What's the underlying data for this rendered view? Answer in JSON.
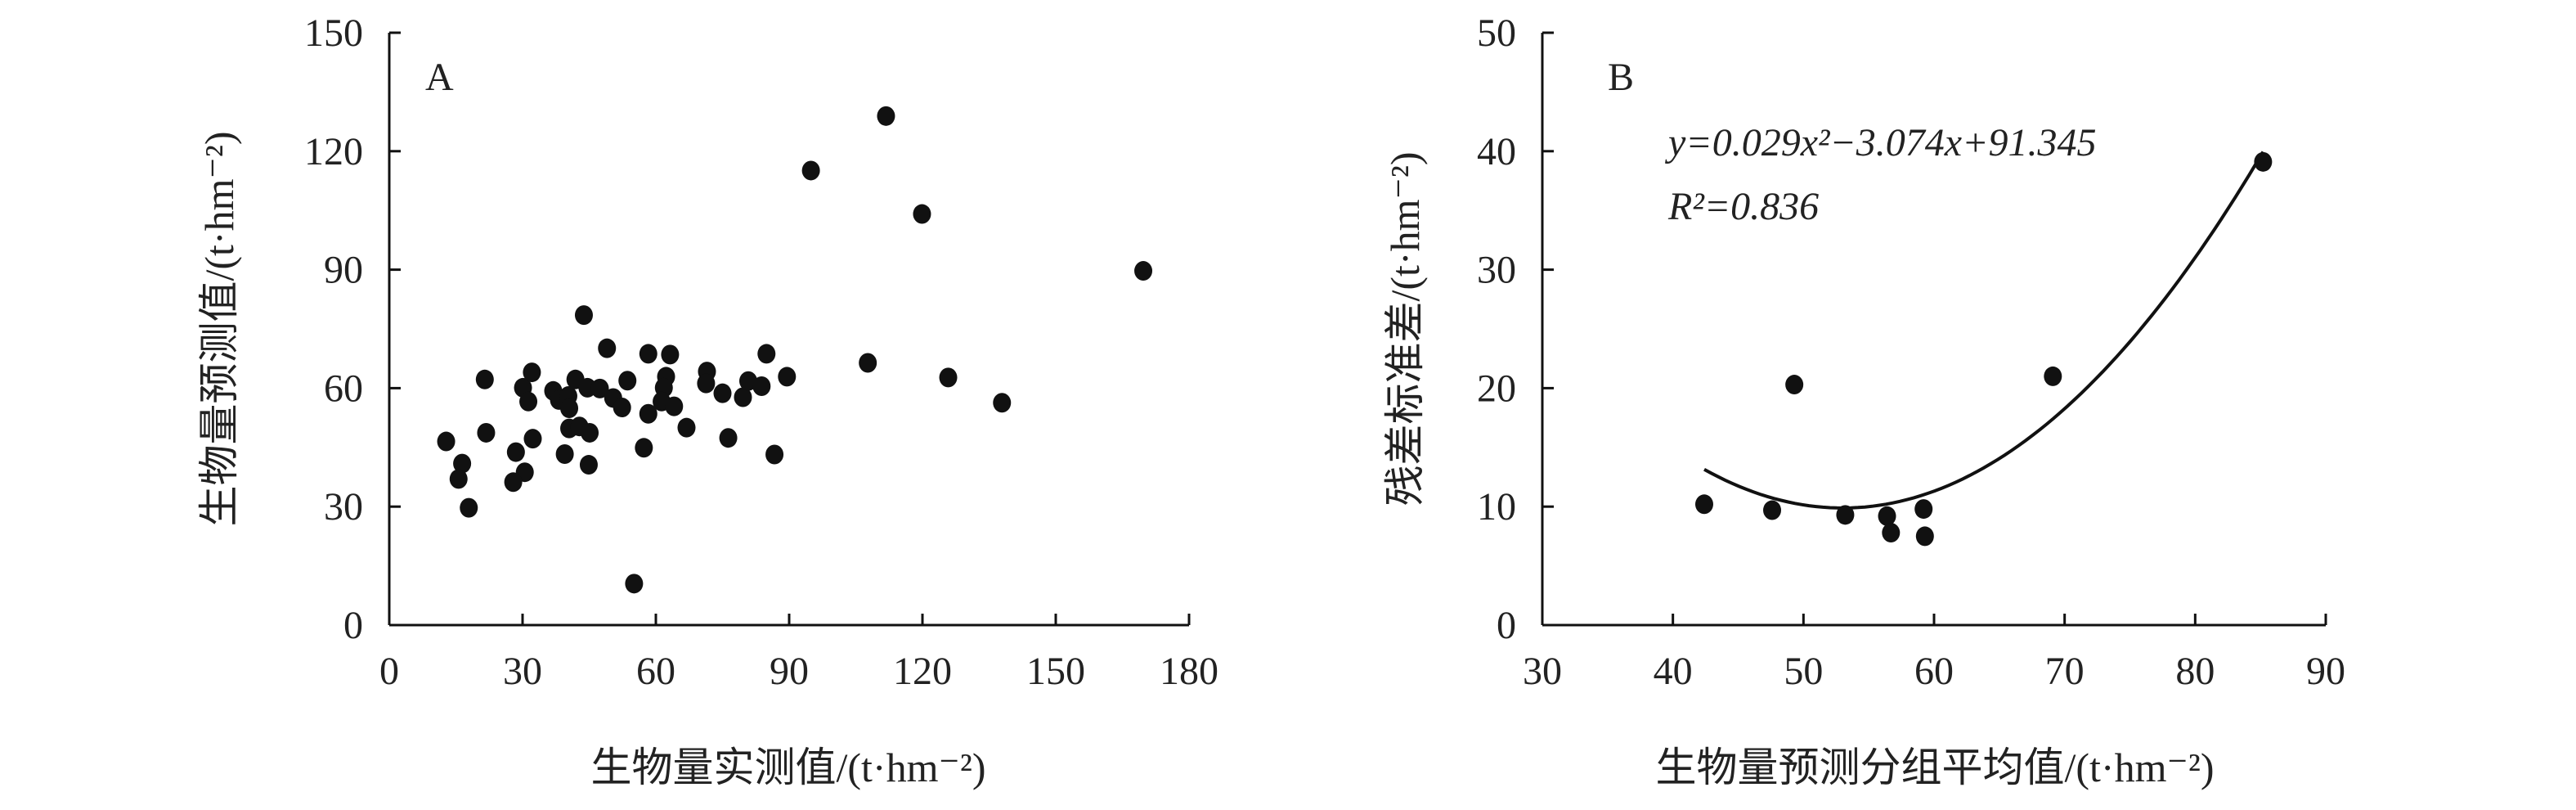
{
  "chart_data": [
    {
      "type": "scatter",
      "panel_label": "A",
      "xlabel": "生物量实测值/(t·hm⁻²)",
      "ylabel": "生物量预测值/(t·hm⁻²)",
      "xlim": [
        0,
        180
      ],
      "ylim": [
        0,
        150
      ],
      "xticks": [
        0,
        30,
        60,
        90,
        120,
        150,
        180
      ],
      "yticks": [
        0,
        30,
        60,
        90,
        120,
        150
      ],
      "grid": false,
      "marker_color": "#111111",
      "points": [
        [
          12.8,
          46.5
        ],
        [
          21.5,
          62.2
        ],
        [
          21.8,
          48.7
        ],
        [
          16.4,
          40.9
        ],
        [
          15.6,
          37.0
        ],
        [
          17.9,
          29.7
        ],
        [
          30.1,
          60.1
        ],
        [
          32.1,
          64.0
        ],
        [
          31.3,
          56.6
        ],
        [
          28.5,
          43.8
        ],
        [
          32.3,
          47.2
        ],
        [
          30.5,
          38.7
        ],
        [
          27.9,
          36.2
        ],
        [
          36.9,
          59.3
        ],
        [
          38.2,
          57.0
        ],
        [
          40.3,
          58.0
        ],
        [
          40.5,
          54.9
        ],
        [
          41.9,
          62.2
        ],
        [
          44.6,
          60.1
        ],
        [
          47.4,
          59.9
        ],
        [
          43.8,
          78.5
        ],
        [
          49.0,
          70.1
        ],
        [
          50.4,
          57.5
        ],
        [
          52.4,
          55.1
        ],
        [
          53.6,
          61.9
        ],
        [
          40.5,
          49.8
        ],
        [
          42.8,
          50.3
        ],
        [
          45.1,
          48.7
        ],
        [
          39.5,
          43.3
        ],
        [
          44.9,
          40.6
        ],
        [
          58.3,
          68.7
        ],
        [
          63.2,
          68.5
        ],
        [
          62.3,
          62.9
        ],
        [
          61.8,
          60.1
        ],
        [
          61.3,
          56.6
        ],
        [
          64.1,
          55.4
        ],
        [
          58.3,
          53.5
        ],
        [
          66.9,
          50.0
        ],
        [
          57.3,
          44.9
        ],
        [
          55.1,
          10.5
        ],
        [
          71.5,
          64.2
        ],
        [
          71.3,
          61.2
        ],
        [
          75.0,
          58.7
        ],
        [
          76.3,
          47.4
        ],
        [
          79.6,
          57.7
        ],
        [
          80.8,
          61.8
        ],
        [
          83.8,
          60.5
        ],
        [
          84.9,
          68.7
        ],
        [
          86.7,
          43.2
        ],
        [
          89.5,
          62.9
        ],
        [
          94.9,
          115.1
        ],
        [
          107.7,
          66.4
        ],
        [
          111.8,
          128.9
        ],
        [
          119.9,
          104.1
        ],
        [
          125.8,
          62.7
        ],
        [
          137.9,
          56.3
        ],
        [
          169.7,
          89.7
        ]
      ]
    },
    {
      "type": "scatter",
      "panel_label": "B",
      "xlabel": "生物量预测分组平均值/(t·hm⁻²)",
      "ylabel": "残差标准差/(t·hm⁻²)",
      "xlim": [
        30,
        90
      ],
      "ylim": [
        0,
        50
      ],
      "xticks": [
        30,
        40,
        50,
        60,
        70,
        80,
        90
      ],
      "yticks": [
        0,
        10,
        20,
        30,
        40,
        50
      ],
      "grid": false,
      "marker_color": "#111111",
      "points": [
        [
          42.4,
          10.2
        ],
        [
          47.6,
          9.7
        ],
        [
          49.3,
          20.3
        ],
        [
          53.2,
          9.3
        ],
        [
          56.4,
          9.2
        ],
        [
          56.7,
          7.8
        ],
        [
          59.2,
          9.8
        ],
        [
          59.3,
          7.5
        ],
        [
          69.1,
          21.0
        ],
        [
          85.2,
          39.1
        ]
      ],
      "fit": {
        "type": "quadratic",
        "coefficients": [
          0.029,
          -3.074,
          91.345
        ],
        "x_range": [
          42.4,
          85.2
        ],
        "equation": "y=0.029x²−3.074x+91.345",
        "r2_text": "R²=0.836"
      }
    }
  ]
}
